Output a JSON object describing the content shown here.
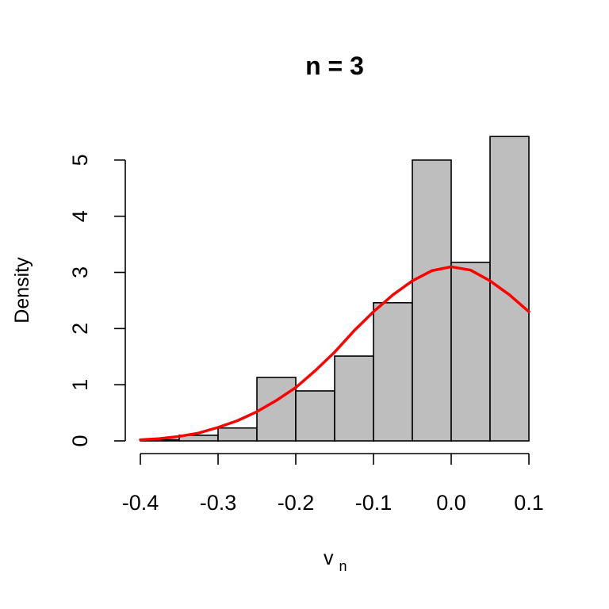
{
  "chart_data": {
    "type": "bar",
    "title": "n =  3",
    "xlabel": "v",
    "xlabel_subscript": "n",
    "ylabel": "Density",
    "xlim": [
      -0.4,
      0.1
    ],
    "ylim": [
      0,
      5.4
    ],
    "x_ticks": [
      -0.4,
      -0.3,
      -0.2,
      -0.1,
      0.0,
      0.1
    ],
    "x_tick_labels": [
      "-0.4",
      "-0.3",
      "-0.2",
      "-0.1",
      "0.0",
      "0.1"
    ],
    "y_ticks": [
      0,
      1,
      2,
      3,
      4,
      5
    ],
    "y_tick_labels": [
      "0",
      "1",
      "2",
      "3",
      "4",
      "5"
    ],
    "bin_edges": [
      -0.4,
      -0.35,
      -0.3,
      -0.25,
      -0.2,
      -0.15,
      -0.1,
      -0.05,
      0.0,
      0.05,
      0.1
    ],
    "values": [
      0.02,
      0.1,
      0.23,
      1.13,
      0.89,
      1.51,
      2.46,
      5.0,
      3.18,
      5.42
    ],
    "bar_color": "#BEBEBE",
    "grid": false,
    "series": [
      {
        "type": "line",
        "color": "#FF0000",
        "x": [
          -0.4,
          -0.375,
          -0.35,
          -0.325,
          -0.3,
          -0.275,
          -0.25,
          -0.225,
          -0.2,
          -0.175,
          -0.15,
          -0.125,
          -0.1,
          -0.075,
          -0.05,
          -0.025,
          0.0,
          0.025,
          0.05,
          0.075,
          0.1
        ],
        "y": [
          0.02,
          0.04,
          0.08,
          0.14,
          0.24,
          0.36,
          0.52,
          0.72,
          0.95,
          1.25,
          1.58,
          1.96,
          2.3,
          2.6,
          2.85,
          3.03,
          3.1,
          3.04,
          2.85,
          2.6,
          2.3
        ]
      }
    ]
  }
}
